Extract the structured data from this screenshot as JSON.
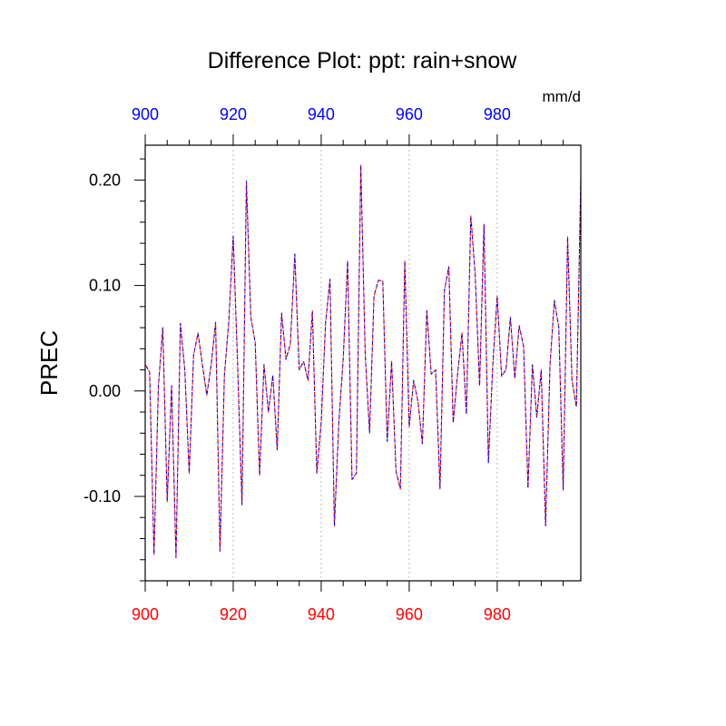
{
  "chart_data": {
    "type": "line",
    "title": "Difference Plot: ppt: rain+snow",
    "units_label": "mm/d",
    "xlabel": "",
    "ylabel": "PREC",
    "xlim": [
      900,
      999
    ],
    "ylim": [
      -0.18,
      0.233
    ],
    "x_ticks": [
      "900",
      "920",
      "940",
      "960",
      "980"
    ],
    "y_ticks": [
      "-0.10",
      "0.00",
      "0.10",
      "0.20"
    ],
    "y_tick_values": [
      -0.1,
      0.0,
      0.1,
      0.2
    ],
    "bottom_axis_color": "#ff0000",
    "top_axis_color": "#0000ff",
    "grid": "vertical dotted at major x ticks",
    "series": [
      {
        "line_style": "dashed",
        "colors": [
          "#ff0000",
          "#0000ff"
        ],
        "x_start": 900,
        "x_step": 1,
        "values": [
          0.025,
          0.018,
          -0.155,
          0.005,
          0.06,
          -0.105,
          0.005,
          -0.158,
          0.064,
          0.02,
          -0.078,
          0.034,
          0.055,
          0.025,
          -0.004,
          0.025,
          0.065,
          -0.152,
          0.015,
          0.066,
          0.147,
          0.025,
          -0.108,
          0.199,
          0.07,
          0.046,
          -0.08,
          0.025,
          -0.02,
          0.015,
          -0.056,
          0.074,
          0.03,
          0.045,
          0.13,
          0.02,
          0.028,
          0.01,
          0.076,
          -0.078,
          -0.03,
          0.065,
          0.106,
          -0.128,
          -0.03,
          0.03,
          0.123,
          -0.084,
          -0.078,
          0.214,
          0.035,
          -0.04,
          0.09,
          0.105,
          0.104,
          -0.048,
          0.028,
          -0.076,
          -0.093,
          0.123,
          -0.034,
          0.01,
          -0.01,
          -0.05,
          0.076,
          0.016,
          0.02,
          -0.093,
          0.095,
          0.118,
          -0.03,
          0.016,
          0.055,
          -0.022,
          0.166,
          0.11,
          0.005,
          0.158,
          -0.068,
          0.025,
          0.09,
          0.014,
          0.02,
          0.07,
          0.012,
          0.062,
          0.042,
          -0.092,
          0.025,
          -0.025,
          0.02,
          -0.128,
          0.025,
          0.086,
          0.06,
          -0.094,
          0.146,
          0.01,
          -0.015,
          0.2
        ]
      }
    ]
  }
}
